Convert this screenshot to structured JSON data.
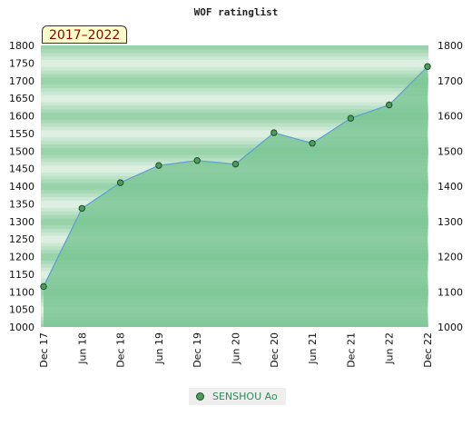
{
  "chart_data": {
    "type": "area",
    "title": "WOF ratinglist",
    "period": "2017–2022",
    "x": [
      "Dec 17",
      "Jun 18",
      "Dec 18",
      "Jun 19",
      "Dec 19",
      "Jun 20",
      "Dec 20",
      "Jun 21",
      "Dec 21",
      "Jun 22",
      "Dec 22"
    ],
    "series": [
      {
        "name": "SENSHOU Ao",
        "values": [
          1115,
          1337,
          1410,
          1459,
          1473,
          1463,
          1552,
          1522,
          1593,
          1631,
          1740
        ]
      }
    ],
    "ylim": [
      1000,
      1800
    ],
    "left_ticks": [
      1000,
      1050,
      1100,
      1150,
      1200,
      1250,
      1300,
      1350,
      1400,
      1450,
      1500,
      1550,
      1600,
      1650,
      1700,
      1750,
      1800
    ],
    "right_ticks": [
      1000,
      1100,
      1200,
      1300,
      1400,
      1500,
      1600,
      1700,
      1800
    ],
    "legend_position": "bottom-center",
    "colors": {
      "area": "#7dc595",
      "line": "#5b9fd4",
      "marker": "#4c9c5c",
      "marker_edge": "#1e4d28",
      "band_dark": "#8fcfa3",
      "band_light": "#eef7f0",
      "legend_text": "#2e8b57"
    }
  }
}
